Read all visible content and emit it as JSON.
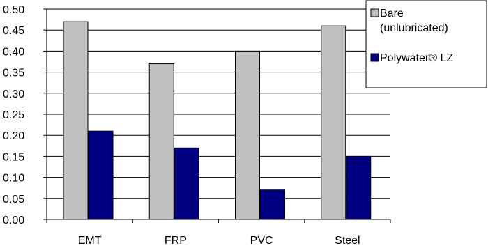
{
  "chart_data": {
    "type": "bar",
    "categories": [
      "EMT",
      "FRP",
      "PVC",
      "Steel"
    ],
    "series": [
      {
        "name": "Bare (unlubricated)",
        "name_lines": [
          "Bare",
          "(unlubricated)"
        ],
        "color": "#c0c0c0",
        "values": [
          0.47,
          0.37,
          0.4,
          0.46
        ]
      },
      {
        "name": "Polywater® LZ",
        "name_lines": [
          "Polywater® LZ"
        ],
        "color": "#000080",
        "values": [
          0.21,
          0.17,
          0.07,
          0.15
        ]
      }
    ],
    "y_ticks": [
      "0.00",
      "0.05",
      "0.10",
      "0.15",
      "0.20",
      "0.25",
      "0.30",
      "0.35",
      "0.40",
      "0.45",
      "0.50"
    ],
    "ylim": [
      0,
      0.5
    ],
    "grid": true,
    "legend_position": "top-right",
    "title": "",
    "xlabel": "",
    "ylabel": ""
  }
}
